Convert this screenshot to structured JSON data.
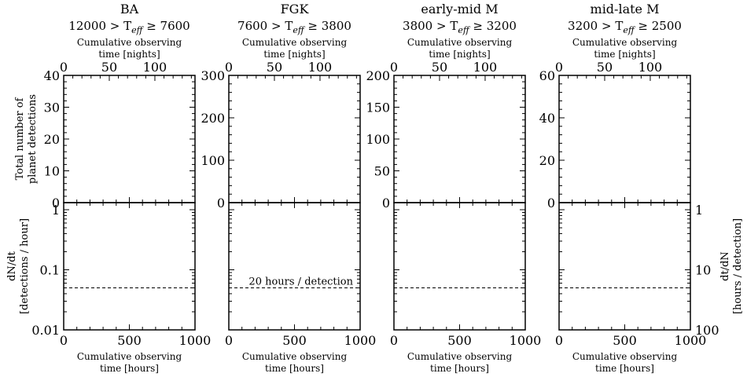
{
  "chart_data": [
    {
      "type": "line",
      "title_line1": "BA",
      "title_line2": "12000  > T_eff ≥  7600",
      "top_xlabel_line1": "Cumulative observing",
      "top_xlabel_line2": "time [nights]",
      "top_xticks": [
        "0",
        "50",
        "100"
      ],
      "top_xlim": [
        0,
        144
      ],
      "upper_ylabel_line1": "Total number of",
      "upper_ylabel_line2": "planet detections",
      "upper_ylim": [
        0,
        40
      ],
      "upper_yticks": [
        "0",
        "10",
        "20",
        "30",
        "40"
      ],
      "lower_ylabel_line1": "dN/dt",
      "lower_ylabel_line2": "[detections / hour]",
      "lower_ylim": [
        0.01,
        1.3
      ],
      "lower_yscale": "log",
      "lower_yticks": [
        "0.01",
        "0.1",
        "1"
      ],
      "bottom_xlabel_line1": "Cumulative observing",
      "bottom_xlabel_line2": "time [hours]",
      "bottom_xticks": [
        "0",
        "500",
        "1000"
      ],
      "bottom_xlim": [
        0,
        1000
      ],
      "reference_rate": 0.05,
      "reference_label": ""
    },
    {
      "type": "line",
      "title_line1": "FGK",
      "title_line2": "7600  > T_eff ≥  3800",
      "top_xlabel_line1": "Cumulative observing",
      "top_xlabel_line2": "time [nights]",
      "top_xticks": [
        "0",
        "50",
        "100"
      ],
      "top_xlim": [
        0,
        144
      ],
      "upper_ylim": [
        0,
        300
      ],
      "upper_yticks": [
        "0",
        "100",
        "200",
        "300"
      ],
      "lower_ylim": [
        0.01,
        1.3
      ],
      "lower_yscale": "log",
      "bottom_xlabel_line1": "Cumulative observing",
      "bottom_xlabel_line2": "time [hours]",
      "bottom_xticks": [
        "0",
        "500",
        "1000"
      ],
      "bottom_xlim": [
        0,
        1000
      ],
      "reference_rate": 0.05,
      "reference_label": "20 hours / detection"
    },
    {
      "type": "line",
      "title_line1": "early-mid M",
      "title_line2": "3800  > T_eff ≥  3200",
      "top_xlabel_line1": "Cumulative observing",
      "top_xlabel_line2": "time [nights]",
      "top_xticks": [
        "0",
        "50",
        "100"
      ],
      "top_xlim": [
        0,
        144
      ],
      "upper_ylim": [
        0,
        200
      ],
      "upper_yticks": [
        "0",
        "50",
        "100",
        "150",
        "200"
      ],
      "lower_ylim": [
        0.01,
        1.3
      ],
      "lower_yscale": "log",
      "bottom_xlabel_line1": "Cumulative observing",
      "bottom_xlabel_line2": "time [hours]",
      "bottom_xticks": [
        "0",
        "500",
        "1000"
      ],
      "bottom_xlim": [
        0,
        1000
      ],
      "reference_rate": 0.05,
      "reference_label": ""
    },
    {
      "type": "line",
      "title_line1": "mid-late M",
      "title_line2": "3200  > T_eff ≥  2500",
      "top_xlabel_line1": "Cumulative observing",
      "top_xlabel_line2": "time [nights]",
      "top_xticks": [
        "0",
        "50",
        "100"
      ],
      "top_xlim": [
        0,
        144
      ],
      "upper_ylim": [
        0,
        60
      ],
      "upper_yticks": [
        "0",
        "20",
        "40",
        "60"
      ],
      "lower_ylim": [
        0.01,
        1.3
      ],
      "lower_yscale": "log",
      "right_ylabel_line1": "dt/dN",
      "right_ylabel_line2": "[hours / detection]",
      "right_yticks": [
        "1",
        "10",
        "100"
      ],
      "bottom_xlabel_line1": "Cumulative observing",
      "bottom_xlabel_line2": "time [hours]",
      "bottom_xticks": [
        "0",
        "500",
        "1000"
      ],
      "bottom_xlim": [
        0,
        1000
      ],
      "reference_rate": 0.05,
      "reference_label": ""
    }
  ]
}
